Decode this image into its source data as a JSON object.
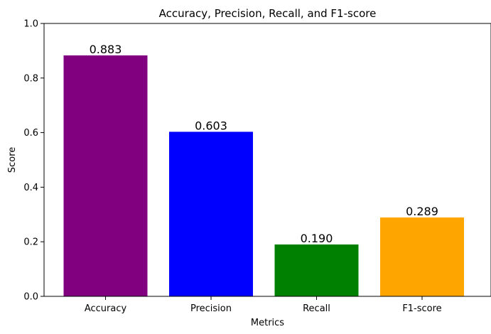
{
  "chart_data": {
    "type": "bar",
    "title": "Accuracy, Precision, Recall, and F1-score",
    "xlabel": "Metrics",
    "ylabel": "Score",
    "categories": [
      "Accuracy",
      "Precision",
      "Recall",
      "F1-score"
    ],
    "values": [
      0.883,
      0.603,
      0.19,
      0.289
    ],
    "data_labels": [
      "0.883",
      "0.603",
      "0.190",
      "0.289"
    ],
    "colors": [
      "#800080",
      "#0000ff",
      "#008000",
      "#ffa500"
    ],
    "ylim": [
      0,
      1.0
    ],
    "yticks": [
      0.0,
      0.2,
      0.4,
      0.6,
      0.8,
      1.0
    ],
    "ytick_labels": [
      "0.0",
      "0.2",
      "0.4",
      "0.6",
      "0.8",
      "1.0"
    ],
    "grid": false,
    "legend": "none"
  }
}
